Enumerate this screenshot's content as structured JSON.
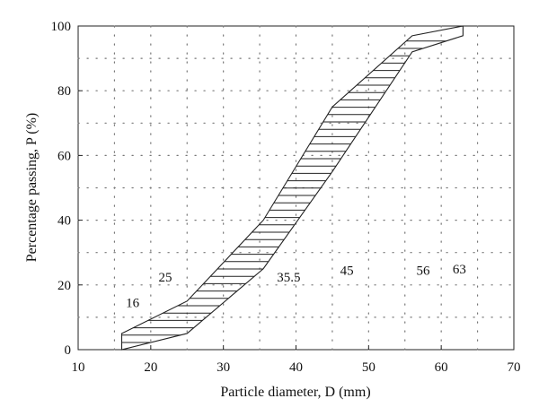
{
  "chart_data": {
    "type": "area",
    "title": "",
    "xlabel": "Particle diameter, D (mm)",
    "ylabel": "Percentage passing, P (%)",
    "xlim": [
      10,
      70
    ],
    "ylim": [
      0,
      100
    ],
    "xticks": [
      10,
      20,
      30,
      40,
      50,
      60,
      70
    ],
    "yticks": [
      0,
      20,
      40,
      60,
      80,
      100
    ],
    "grid": "dotted",
    "hatch": "horizontal",
    "series": [
      {
        "x": [
          16,
          25,
          35.5,
          45,
          56,
          63
        ],
        "values": [
          5,
          15,
          40,
          75,
          97,
          100
        ]
      },
      {
        "x": [
          16,
          25,
          35.5,
          45,
          56,
          63
        ],
        "values": [
          0,
          5,
          25,
          55,
          92,
          97
        ]
      }
    ],
    "annotations": [
      {
        "text": "16",
        "x": 17.5,
        "y": 14.5
      },
      {
        "text": "25",
        "x": 22,
        "y": 22.5
      },
      {
        "text": "35.5",
        "x": 39,
        "y": 22.5
      },
      {
        "text": "45",
        "x": 47,
        "y": 24.5
      },
      {
        "text": "56",
        "x": 57.5,
        "y": 24.5
      },
      {
        "text": "63",
        "x": 62.5,
        "y": 25
      }
    ]
  }
}
